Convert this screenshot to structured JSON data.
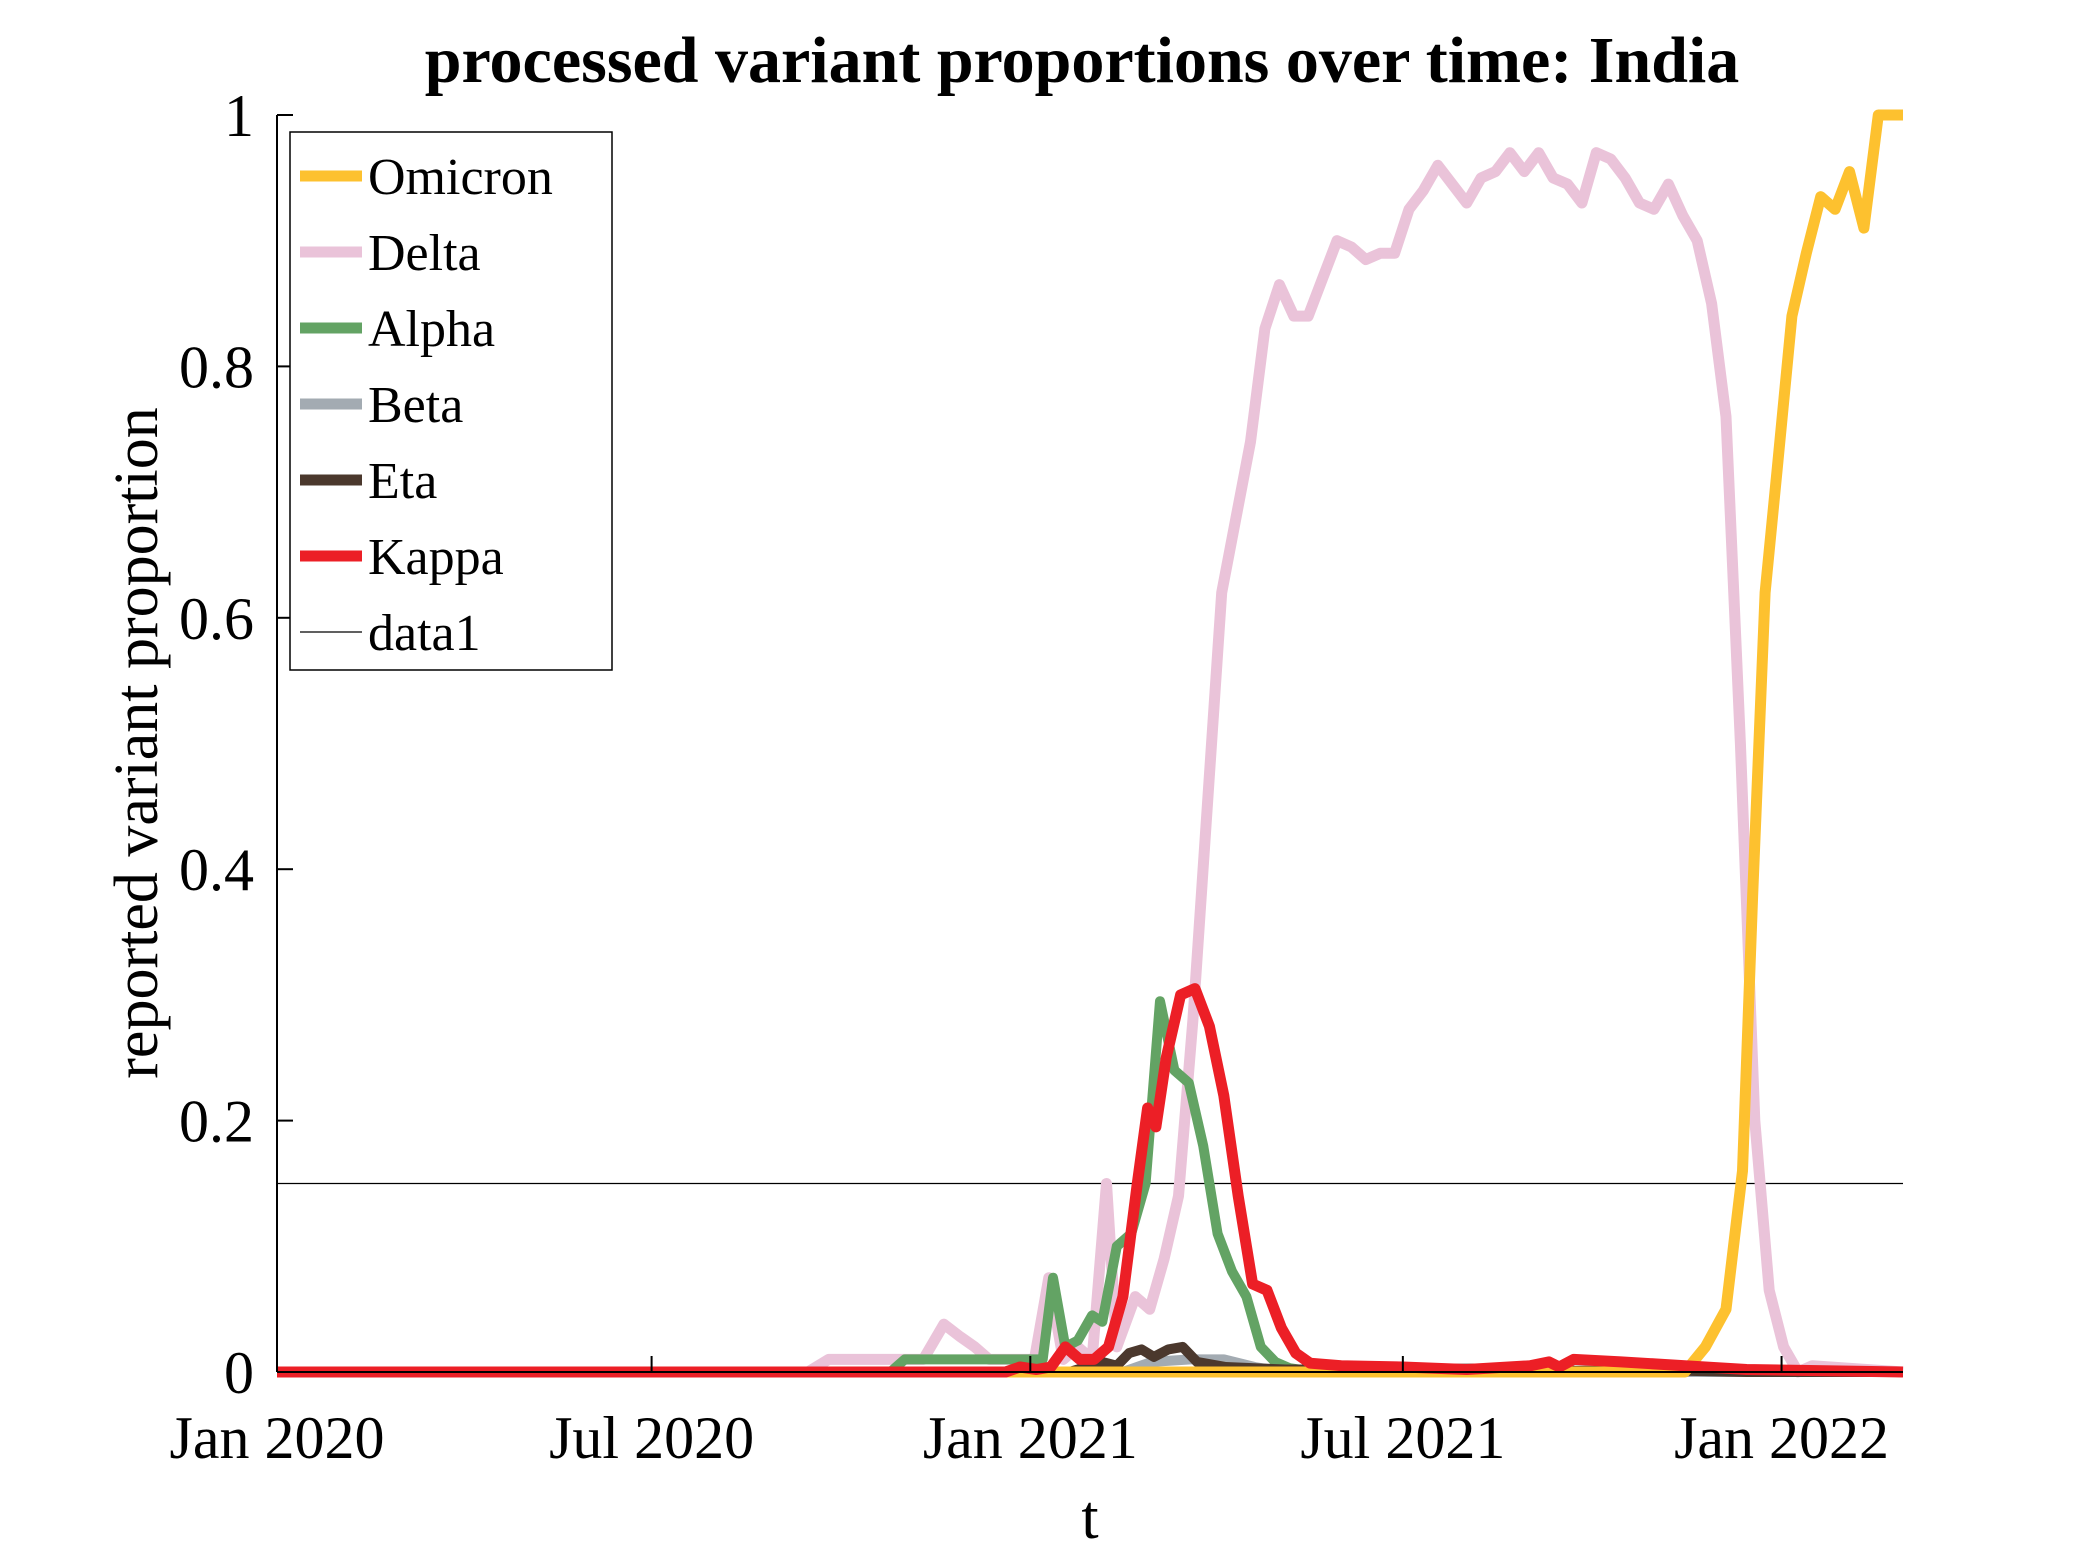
{
  "chart_data": {
    "type": "line",
    "title": "processed variant proportions over time: India",
    "xlabel": "t",
    "ylabel": "reported variant proportion",
    "xlim": [
      "2020-01-01",
      "2022-03-01"
    ],
    "ylim": [
      0,
      1
    ],
    "x_ticks": [
      {
        "date": "2020-01-01",
        "label": "Jan 2020"
      },
      {
        "date": "2020-07-01",
        "label": "Jul 2020"
      },
      {
        "date": "2021-01-01",
        "label": "Jan 2021"
      },
      {
        "date": "2021-07-01",
        "label": "Jul 2021"
      },
      {
        "date": "2022-01-01",
        "label": "Jan 2022"
      }
    ],
    "y_ticks": [
      {
        "value": 0,
        "label": "0"
      },
      {
        "value": 0.2,
        "label": "0.2"
      },
      {
        "value": 0.4,
        "label": "0.4"
      },
      {
        "value": 0.6,
        "label": "0.6"
      },
      {
        "value": 0.8,
        "label": "0.8"
      },
      {
        "value": 1,
        "label": "1"
      }
    ],
    "grid": false,
    "legend_position": "top-left",
    "series": [
      {
        "name": "Omicron",
        "color": "#FDC12F",
        "points": [
          [
            "2020-01-01",
            0
          ],
          [
            "2021-11-15",
            0
          ],
          [
            "2021-11-25",
            0.02
          ],
          [
            "2021-12-05",
            0.05
          ],
          [
            "2021-12-13",
            0.16
          ],
          [
            "2021-12-18",
            0.38
          ],
          [
            "2021-12-24",
            0.62
          ],
          [
            "2021-12-30",
            0.72
          ],
          [
            "2022-01-06",
            0.84
          ],
          [
            "2022-01-13",
            0.89
          ],
          [
            "2022-01-20",
            0.935
          ],
          [
            "2022-01-27",
            0.925
          ],
          [
            "2022-02-03",
            0.955
          ],
          [
            "2022-02-10",
            0.91
          ],
          [
            "2022-02-17",
            1.0
          ],
          [
            "2022-03-01",
            1.0
          ]
        ]
      },
      {
        "name": "Delta",
        "color": "#EAC3D9",
        "points": [
          [
            "2020-01-01",
            0
          ],
          [
            "2020-09-15",
            0
          ],
          [
            "2020-09-25",
            0.01
          ],
          [
            "2020-10-25",
            0.01
          ],
          [
            "2020-11-10",
            0.01
          ],
          [
            "2020-11-20",
            0.038
          ],
          [
            "2020-11-28",
            0.028
          ],
          [
            "2020-12-05",
            0.02
          ],
          [
            "2020-12-12",
            0.01
          ],
          [
            "2020-12-25",
            0.01
          ],
          [
            "2021-01-03",
            0.01
          ],
          [
            "2021-01-10",
            0.075
          ],
          [
            "2021-01-17",
            0.01
          ],
          [
            "2021-01-24",
            0.02
          ],
          [
            "2021-01-31",
            0.01
          ],
          [
            "2021-02-07",
            0.15
          ],
          [
            "2021-02-12",
            0.02
          ],
          [
            "2021-02-21",
            0.06
          ],
          [
            "2021-02-28",
            0.05
          ],
          [
            "2021-03-07",
            0.09
          ],
          [
            "2021-03-14",
            0.14
          ],
          [
            "2021-03-21",
            0.28
          ],
          [
            "2021-03-28",
            0.45
          ],
          [
            "2021-04-04",
            0.62
          ],
          [
            "2021-04-11",
            0.68
          ],
          [
            "2021-04-18",
            0.74
          ],
          [
            "2021-04-25",
            0.83
          ],
          [
            "2021-05-02",
            0.865
          ],
          [
            "2021-05-09",
            0.84
          ],
          [
            "2021-05-16",
            0.84
          ],
          [
            "2021-05-23",
            0.87
          ],
          [
            "2021-05-30",
            0.9
          ],
          [
            "2021-06-06",
            0.895
          ],
          [
            "2021-06-13",
            0.885
          ],
          [
            "2021-06-20",
            0.89
          ],
          [
            "2021-06-27",
            0.89
          ],
          [
            "2021-07-04",
            0.925
          ],
          [
            "2021-07-11",
            0.94
          ],
          [
            "2021-07-18",
            0.96
          ],
          [
            "2021-07-25",
            0.945
          ],
          [
            "2021-08-01",
            0.93
          ],
          [
            "2021-08-08",
            0.95
          ],
          [
            "2021-08-15",
            0.955
          ],
          [
            "2021-08-22",
            0.97
          ],
          [
            "2021-08-29",
            0.955
          ],
          [
            "2021-09-05",
            0.97
          ],
          [
            "2021-09-12",
            0.95
          ],
          [
            "2021-09-19",
            0.945
          ],
          [
            "2021-09-26",
            0.93
          ],
          [
            "2021-10-03",
            0.97
          ],
          [
            "2021-10-10",
            0.965
          ],
          [
            "2021-10-17",
            0.95
          ],
          [
            "2021-10-24",
            0.93
          ],
          [
            "2021-10-31",
            0.925
          ],
          [
            "2021-11-07",
            0.945
          ],
          [
            "2021-11-14",
            0.92
          ],
          [
            "2021-11-21",
            0.9
          ],
          [
            "2021-11-28",
            0.85
          ],
          [
            "2021-12-05",
            0.76
          ],
          [
            "2021-12-12",
            0.5
          ],
          [
            "2021-12-19",
            0.2
          ],
          [
            "2021-12-26",
            0.065
          ],
          [
            "2022-01-02",
            0.02
          ],
          [
            "2022-01-09",
            0.0
          ],
          [
            "2022-01-16",
            0.005
          ],
          [
            "2022-03-01",
            0
          ]
        ]
      },
      {
        "name": "Alpha",
        "color": "#63A364",
        "points": [
          [
            "2020-01-01",
            0
          ],
          [
            "2020-10-25",
            0
          ],
          [
            "2020-11-01",
            0.01
          ],
          [
            "2020-12-20",
            0.01
          ],
          [
            "2021-01-07",
            0.01
          ],
          [
            "2021-01-12",
            0.075
          ],
          [
            "2021-01-18",
            0.02
          ],
          [
            "2021-01-24",
            0.025
          ],
          [
            "2021-01-31",
            0.045
          ],
          [
            "2021-02-05",
            0.04
          ],
          [
            "2021-02-12",
            0.1
          ],
          [
            "2021-02-19",
            0.11
          ],
          [
            "2021-02-26",
            0.15
          ],
          [
            "2021-03-05",
            0.295
          ],
          [
            "2021-03-12",
            0.24
          ],
          [
            "2021-03-19",
            0.23
          ],
          [
            "2021-03-26",
            0.18
          ],
          [
            "2021-04-02",
            0.11
          ],
          [
            "2021-04-09",
            0.08
          ],
          [
            "2021-04-16",
            0.06
          ],
          [
            "2021-04-23",
            0.02
          ],
          [
            "2021-04-30",
            0.008
          ],
          [
            "2021-05-07",
            0.003
          ],
          [
            "2021-05-20",
            0
          ],
          [
            "2022-03-01",
            0
          ]
        ]
      },
      {
        "name": "Beta",
        "color": "#A3ABB2",
        "points": [
          [
            "2020-01-01",
            0
          ],
          [
            "2021-02-15",
            0
          ],
          [
            "2021-03-01",
            0.008
          ],
          [
            "2021-03-20",
            0.01
          ],
          [
            "2021-04-05",
            0.01
          ],
          [
            "2021-04-20",
            0.004
          ],
          [
            "2021-05-05",
            0
          ],
          [
            "2022-03-01",
            0
          ]
        ]
      },
      {
        "name": "Eta",
        "color": "#4B382D",
        "points": [
          [
            "2020-01-01",
            0
          ],
          [
            "2021-01-20",
            0
          ],
          [
            "2021-02-05",
            0.008
          ],
          [
            "2021-02-12",
            0.005
          ],
          [
            "2021-02-18",
            0.015
          ],
          [
            "2021-02-24",
            0.018
          ],
          [
            "2021-03-02",
            0.012
          ],
          [
            "2021-03-09",
            0.018
          ],
          [
            "2021-03-16",
            0.02
          ],
          [
            "2021-03-23",
            0.008
          ],
          [
            "2021-04-06",
            0.004
          ],
          [
            "2021-04-20",
            0.003
          ],
          [
            "2021-05-05",
            0.002
          ],
          [
            "2021-06-01",
            0.002
          ],
          [
            "2021-09-01",
            0.003
          ],
          [
            "2021-09-15",
            0.001
          ],
          [
            "2021-11-15",
            0.001
          ],
          [
            "2021-12-15",
            0
          ],
          [
            "2022-03-01",
            0
          ]
        ]
      },
      {
        "name": "Kappa",
        "color": "#EC1F26",
        "points": [
          [
            "2020-01-01",
            0
          ],
          [
            "2020-12-20",
            0
          ],
          [
            "2020-12-27",
            0.004
          ],
          [
            "2021-01-04",
            0.002
          ],
          [
            "2021-01-11",
            0.004
          ],
          [
            "2021-01-18",
            0.02
          ],
          [
            "2021-01-25",
            0.01
          ],
          [
            "2021-02-01",
            0.01
          ],
          [
            "2021-02-08",
            0.02
          ],
          [
            "2021-02-15",
            0.06
          ],
          [
            "2021-02-22",
            0.15
          ],
          [
            "2021-02-27",
            0.21
          ],
          [
            "2021-03-03",
            0.195
          ],
          [
            "2021-03-08",
            0.25
          ],
          [
            "2021-03-15",
            0.3
          ],
          [
            "2021-03-22",
            0.305
          ],
          [
            "2021-03-29",
            0.275
          ],
          [
            "2021-04-05",
            0.22
          ],
          [
            "2021-04-12",
            0.14
          ],
          [
            "2021-04-19",
            0.07
          ],
          [
            "2021-04-26",
            0.065
          ],
          [
            "2021-05-03",
            0.035
          ],
          [
            "2021-05-10",
            0.015
          ],
          [
            "2021-05-17",
            0.007
          ],
          [
            "2021-06-01",
            0.005
          ],
          [
            "2021-07-01",
            0.004
          ],
          [
            "2021-08-01",
            0.002
          ],
          [
            "2021-09-01",
            0.005
          ],
          [
            "2021-09-10",
            0.008
          ],
          [
            "2021-09-15",
            0.004
          ],
          [
            "2021-09-22",
            0.01
          ],
          [
            "2021-10-15",
            0.008
          ],
          [
            "2021-11-15",
            0.005
          ],
          [
            "2021-12-15",
            0.002
          ],
          [
            "2022-03-01",
            0
          ]
        ]
      },
      {
        "name": "data1",
        "color": "#000000",
        "points": [
          [
            "2020-01-01",
            0.15
          ],
          [
            "2022-03-01",
            0.15
          ]
        ]
      }
    ]
  }
}
